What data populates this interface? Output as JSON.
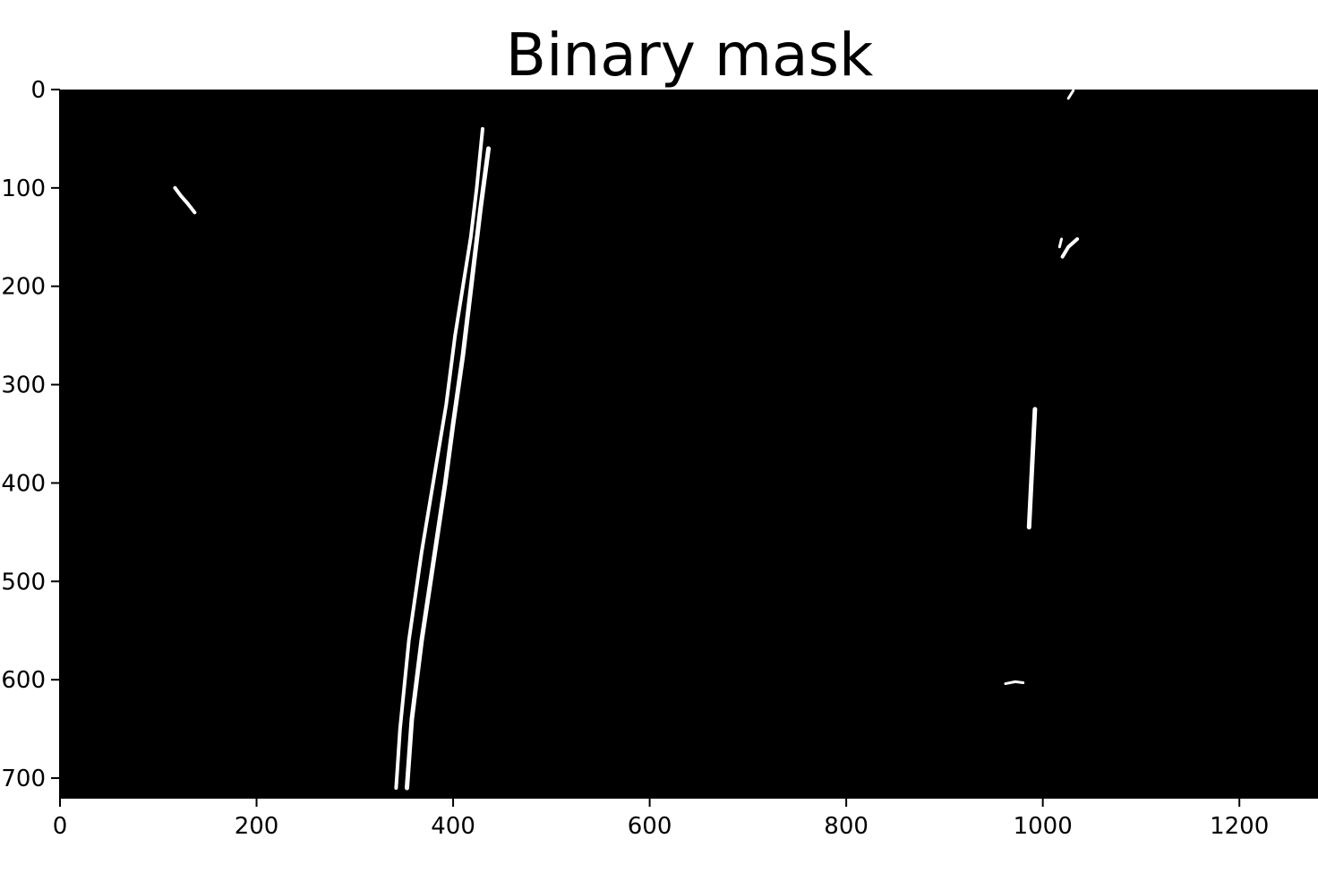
{
  "figure": {
    "title": "Binary mask",
    "colors": {
      "background": "#000000",
      "mask": "#ffffff",
      "axis": "#000000",
      "text": "#000000",
      "page": "#ffffff"
    },
    "image_extent": {
      "x": [
        0,
        1280
      ],
      "y": [
        0,
        720
      ]
    },
    "y_axis_inverted": true,
    "grid": false,
    "x_ticks": [
      {
        "value": 0,
        "label": "0"
      },
      {
        "value": 200,
        "label": "200"
      },
      {
        "value": 400,
        "label": "400"
      },
      {
        "value": 600,
        "label": "600"
      },
      {
        "value": 800,
        "label": "800"
      },
      {
        "value": 1000,
        "label": "1000"
      },
      {
        "value": 1200,
        "label": "1200"
      }
    ],
    "y_ticks": [
      {
        "value": 0,
        "label": "0"
      },
      {
        "value": 100,
        "label": "100"
      },
      {
        "value": 200,
        "label": "200"
      },
      {
        "value": 300,
        "label": "300"
      },
      {
        "value": 400,
        "label": "400"
      },
      {
        "value": 500,
        "label": "500"
      },
      {
        "value": 600,
        "label": "600"
      },
      {
        "value": 700,
        "label": "700"
      }
    ],
    "mask_regions": [
      {
        "name": "left-lane-outer-line",
        "width": 4,
        "path": [
          [
            342,
            710
          ],
          [
            346,
            650
          ],
          [
            355,
            560
          ],
          [
            368,
            470
          ],
          [
            383,
            380
          ],
          [
            393,
            320
          ],
          [
            402,
            250
          ],
          [
            410,
            200
          ],
          [
            418,
            150
          ],
          [
            424,
            100
          ],
          [
            430,
            40
          ]
        ]
      },
      {
        "name": "left-lane-inner-line",
        "width": 5,
        "path": [
          [
            353,
            710
          ],
          [
            358,
            640
          ],
          [
            368,
            560
          ],
          [
            380,
            480
          ],
          [
            392,
            400
          ],
          [
            400,
            340
          ],
          [
            410,
            270
          ],
          [
            416,
            220
          ],
          [
            422,
            170
          ],
          [
            428,
            120
          ],
          [
            436,
            60
          ]
        ]
      },
      {
        "name": "top-left-speck",
        "width": 4,
        "path": [
          [
            117,
            100
          ],
          [
            123,
            108
          ],
          [
            130,
            116
          ],
          [
            137,
            125
          ]
        ]
      },
      {
        "name": "right-lane-segment",
        "width": 5,
        "path": [
          [
            992,
            325
          ],
          [
            990,
            365
          ],
          [
            988,
            405
          ],
          [
            986,
            445
          ]
        ]
      },
      {
        "name": "right-upper-curve",
        "width": 4,
        "path": [
          [
            1020,
            170
          ],
          [
            1026,
            160
          ],
          [
            1035,
            152
          ]
        ]
      },
      {
        "name": "right-upper-stub",
        "width": 3,
        "path": [
          [
            1017,
            160
          ],
          [
            1019,
            152
          ]
        ]
      },
      {
        "name": "top-right-tick",
        "width": 3,
        "path": [
          [
            1026,
            9
          ],
          [
            1031,
            1
          ]
        ]
      },
      {
        "name": "right-lower-fragment",
        "width": 3,
        "path": [
          [
            962,
            604
          ],
          [
            972,
            602
          ],
          [
            980,
            603
          ]
        ]
      }
    ]
  }
}
